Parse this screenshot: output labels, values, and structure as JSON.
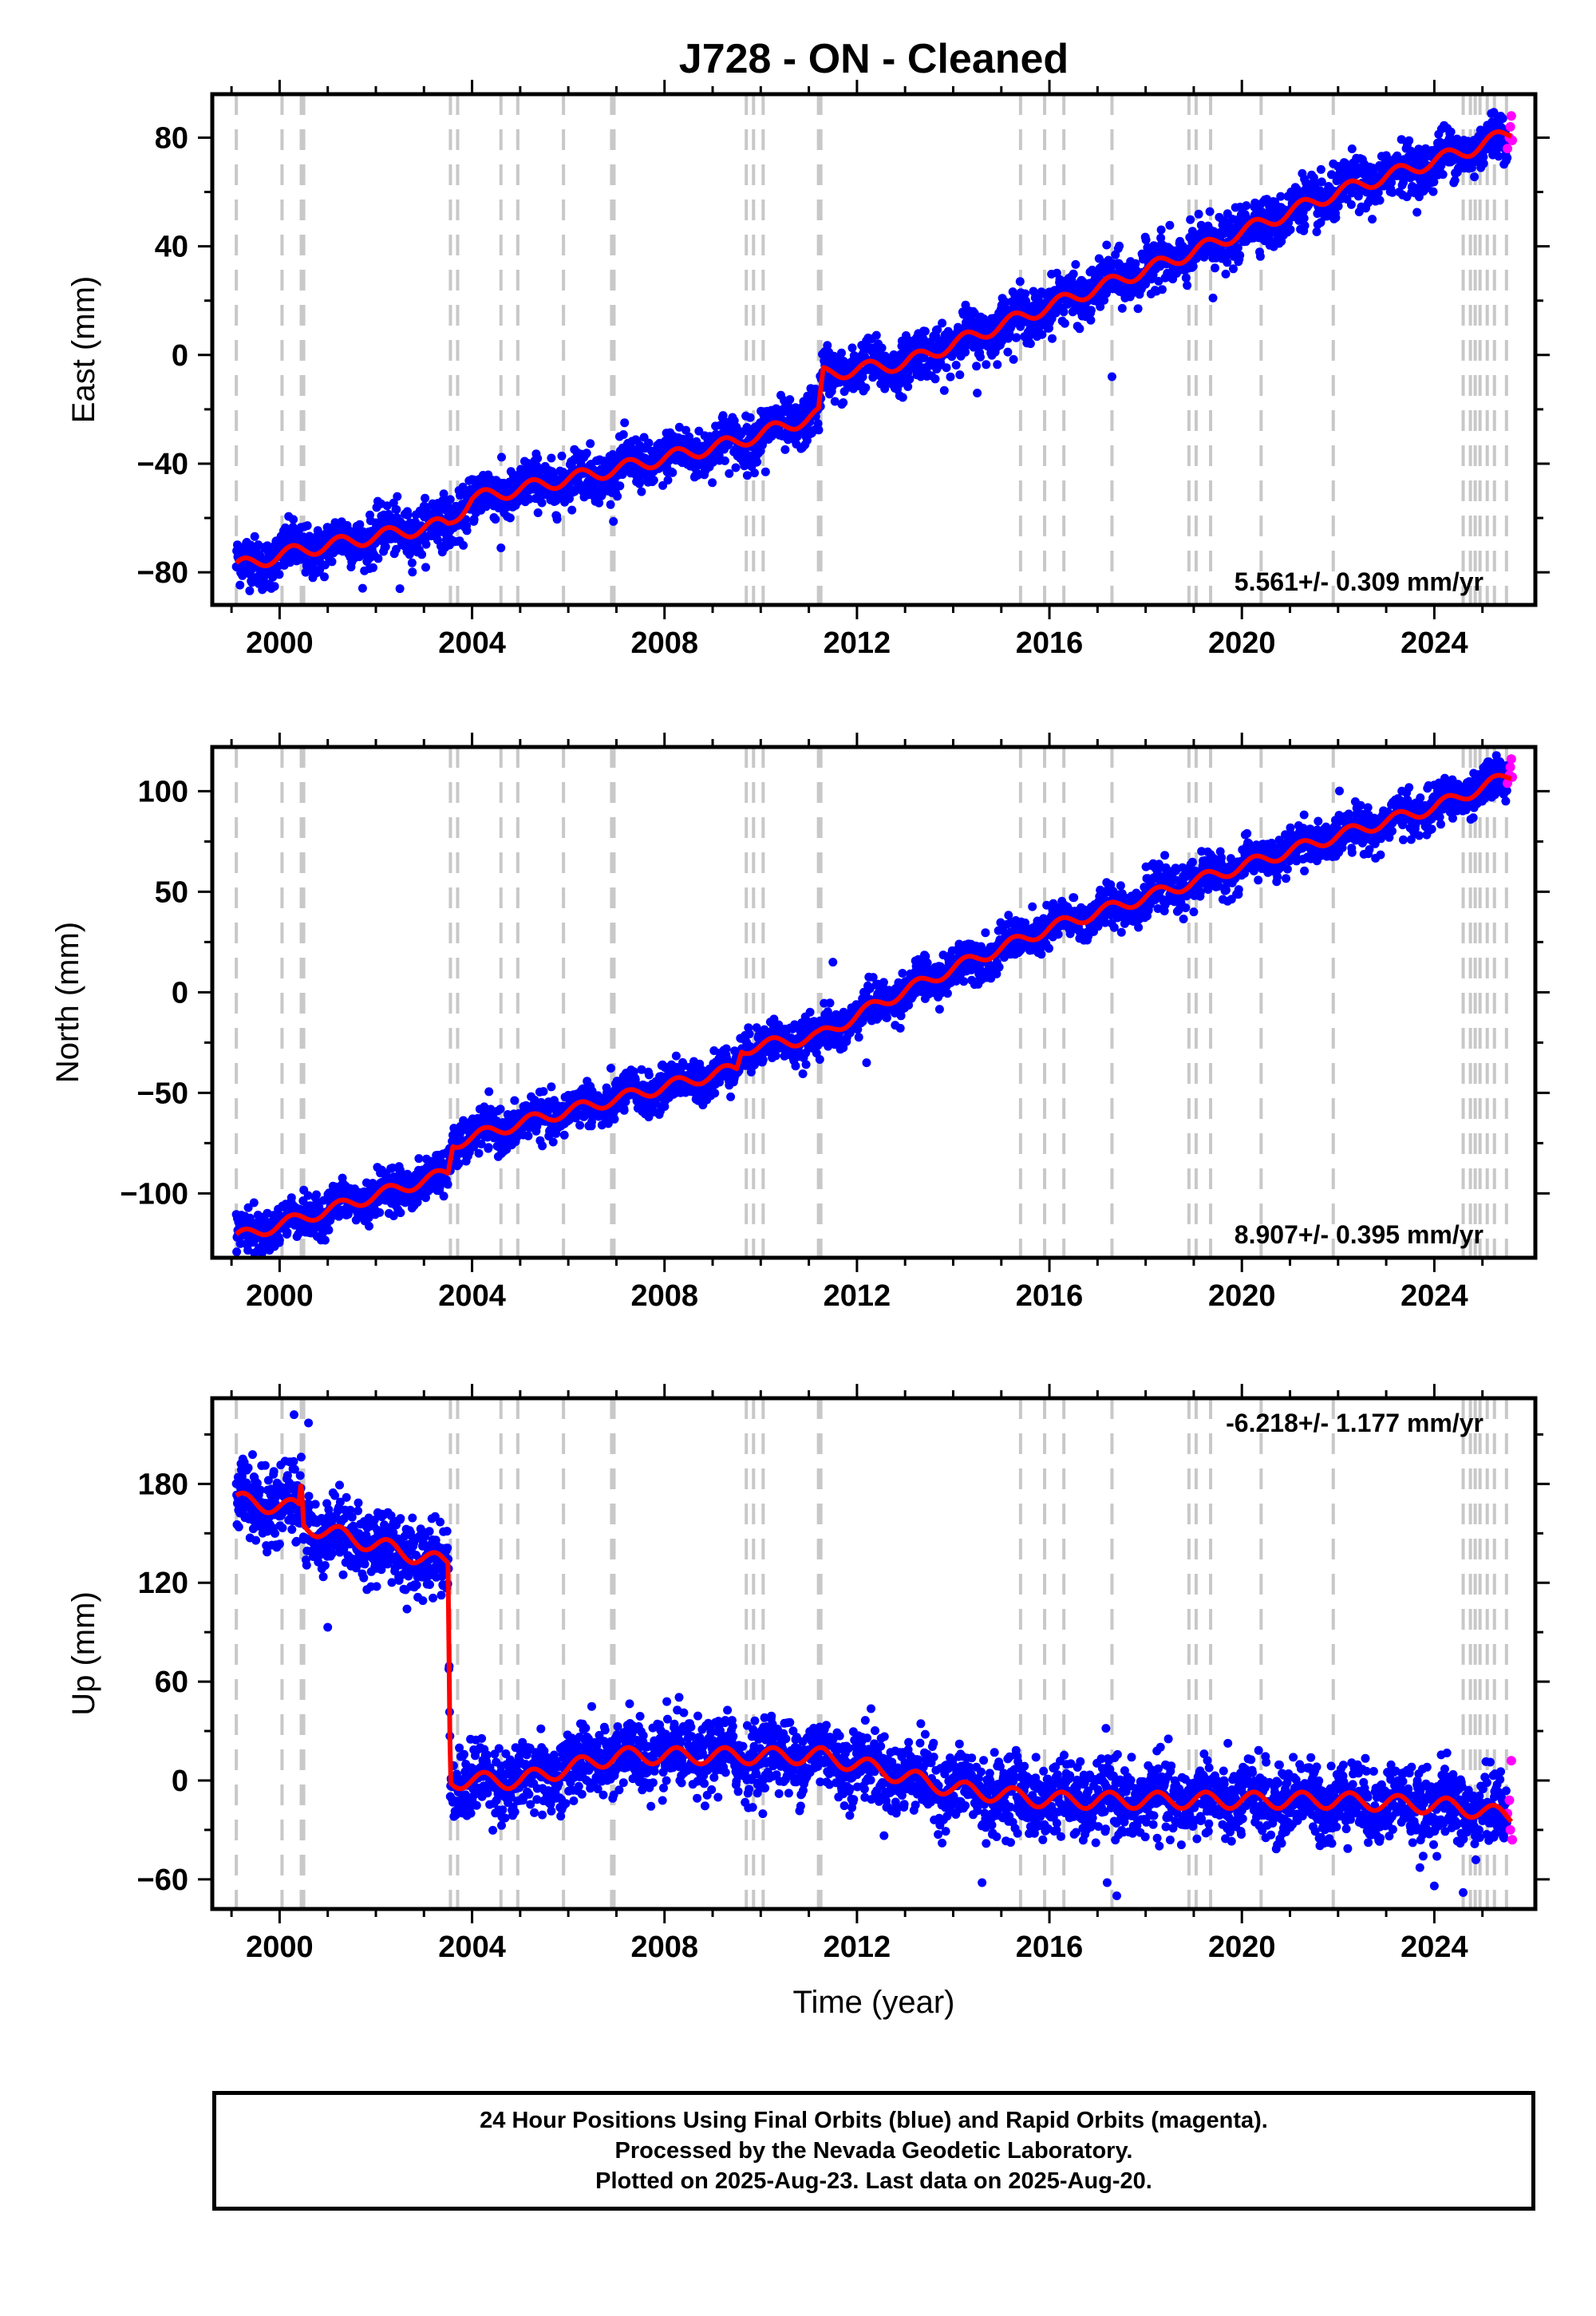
{
  "title": "J728  - ON - Cleaned",
  "colors": {
    "final": "#0000ff",
    "rapid": "#ff00ff",
    "model": "#ff0000",
    "steps": "#c8c8c8"
  },
  "footer": {
    "line1": "24 Hour Positions Using Final Orbits (blue) and Rapid Orbits (magenta).",
    "line2": "Processed by the Nevada Geodetic Laboratory.",
    "line3": "Plotted on 2025-Aug-23. Last data on 2025-Aug-20."
  },
  "chart_data": [
    {
      "type": "scatter",
      "ylabel": "East (mm)",
      "xlabel": "",
      "xlim": [
        1998.6,
        2026.1
      ],
      "ylim": [
        -92,
        96
      ],
      "xticks": [
        2000,
        2004,
        2008,
        2012,
        2016,
        2020,
        2024
      ],
      "yticks": [
        -80,
        -40,
        0,
        40,
        80
      ],
      "yminor": [
        -60,
        -20,
        20,
        60
      ],
      "rate_label": "5.561+/- 0.309 mm/yr",
      "rate_position": "bottom-right",
      "model_trend": [
        [
          1999.1,
          -78
        ],
        [
          2000.4,
          -72
        ],
        [
          2003.5,
          -62
        ],
        [
          2004.0,
          -53
        ],
        [
          2007.0,
          -42
        ],
        [
          2009.5,
          -32
        ],
        [
          2011.2,
          -22
        ],
        [
          2011.3,
          -7
        ],
        [
          2013.0,
          -3
        ],
        [
          2016.0,
          18
        ],
        [
          2019.0,
          38
        ],
        [
          2022.0,
          60
        ],
        [
          2024.8,
          76
        ],
        [
          2025.6,
          82
        ]
      ],
      "model_seasonal_amplitude": 2.5,
      "scatter_spread": 4.5,
      "outlier_points": [
        [
          2002.5,
          -86
        ],
        [
          2004.6,
          -71
        ],
        [
          2010.1,
          -43
        ],
        [
          2014.5,
          -14
        ],
        [
          2017.3,
          -8
        ],
        [
          2019.4,
          21
        ]
      ],
      "rapid_points": [
        [
          2025.52,
          76
        ],
        [
          2025.56,
          80
        ],
        [
          2025.58,
          84
        ],
        [
          2025.6,
          88
        ],
        [
          2025.62,
          79
        ]
      ]
    },
    {
      "type": "scatter",
      "ylabel": "North (mm)",
      "xlabel": "",
      "xlim": [
        1998.6,
        2026.1
      ],
      "ylim": [
        -132,
        122
      ],
      "xticks": [
        2000,
        2004,
        2008,
        2012,
        2016,
        2020,
        2024
      ],
      "yticks": [
        -100,
        -50,
        0,
        50,
        100
      ],
      "yminor": [
        -75,
        -25,
        25,
        75
      ],
      "rate_label": "8.907+/- 0.395 mm/yr",
      "rate_position": "bottom-right",
      "model_trend": [
        [
          1999.1,
          -122
        ],
        [
          2000.5,
          -112
        ],
        [
          2003.5,
          -90
        ],
        [
          2003.6,
          -75
        ],
        [
          2005.0,
          -65
        ],
        [
          2009.5,
          -38
        ],
        [
          2009.6,
          -28
        ],
        [
          2011.2,
          -22
        ],
        [
          2012.5,
          -5
        ],
        [
          2014.0,
          12
        ],
        [
          2016.0,
          32
        ],
        [
          2019.0,
          55
        ],
        [
          2022.0,
          78
        ],
        [
          2024.0,
          92
        ],
        [
          2025.6,
          108
        ]
      ],
      "model_seasonal_amplitude": 3,
      "scatter_spread": 5,
      "outlier_points": [
        [
          2006.7,
          -66
        ],
        [
          2011.5,
          15
        ],
        [
          2012.2,
          -35
        ],
        [
          2019.0,
          40
        ]
      ],
      "rapid_points": [
        [
          2025.52,
          104
        ],
        [
          2025.56,
          108
        ],
        [
          2025.58,
          112
        ],
        [
          2025.6,
          116
        ],
        [
          2025.62,
          107
        ]
      ]
    },
    {
      "type": "scatter",
      "ylabel": "Up (mm)",
      "xlabel": "Time (year)",
      "xlim": [
        1998.6,
        2026.1
      ],
      "ylim": [
        -78,
        232
      ],
      "xticks": [
        2000,
        2004,
        2008,
        2012,
        2016,
        2020,
        2024
      ],
      "yticks": [
        -60,
        0,
        60,
        120,
        180
      ],
      "yminor": [
        -30,
        30,
        90,
        150,
        210
      ],
      "rate_label": "-6.218+/- 1.177 mm/yr",
      "rate_position": "top-right",
      "model_trend": [
        [
          1999.1,
          170
        ],
        [
          2000.4,
          165
        ],
        [
          2000.45,
          180
        ],
        [
          2000.5,
          155
        ],
        [
          2003.4,
          132
        ],
        [
          2003.5,
          132
        ],
        [
          2003.55,
          0
        ],
        [
          2005.0,
          0
        ],
        [
          2007.0,
          15
        ],
        [
          2011.3,
          15
        ],
        [
          2014.0,
          -5
        ],
        [
          2016.0,
          -12
        ],
        [
          2020.0,
          -12
        ],
        [
          2022.0,
          -12
        ],
        [
          2024.5,
          -16
        ],
        [
          2025.6,
          -22
        ]
      ],
      "model_seasonal_amplitude": 5,
      "scatter_spread": 11,
      "outlier_points": [
        [
          2001.0,
          93
        ],
        [
          2000.3,
          222
        ],
        [
          2000.6,
          217
        ],
        [
          2014.6,
          -62
        ],
        [
          2017.4,
          -70
        ],
        [
          2017.2,
          -62
        ],
        [
          2024.0,
          -64
        ],
        [
          2024.6,
          -68
        ]
      ],
      "rapid_points": [
        [
          2025.52,
          -20
        ],
        [
          2025.56,
          -12
        ],
        [
          2025.58,
          -30
        ],
        [
          2025.6,
          12
        ],
        [
          2025.62,
          -36
        ]
      ]
    }
  ],
  "step_epochs": [
    1999.1,
    2000.05,
    2000.45,
    2000.5,
    2003.55,
    2003.7,
    2004.6,
    2004.95,
    2005.9,
    2006.9,
    2006.95,
    2009.7,
    2009.85,
    2010.05,
    2011.2,
    2011.25,
    2015.4,
    2015.9,
    2016.3,
    2017.3,
    2018.9,
    2019.05,
    2019.35,
    2020.4,
    2021.9,
    2024.6,
    2024.75,
    2024.85,
    2024.95,
    2025.1,
    2025.25,
    2025.5
  ]
}
